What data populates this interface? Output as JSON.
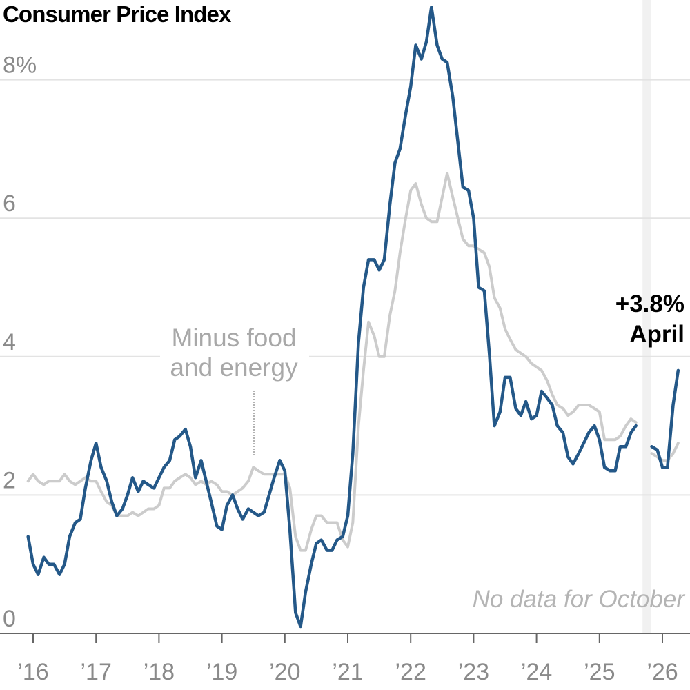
{
  "chart_data": {
    "type": "line",
    "title": "Consumer Price Index",
    "y_ticks": [
      "8%",
      "6",
      "4",
      "2",
      "0"
    ],
    "y_tick_values": [
      8,
      6,
      4,
      2,
      0
    ],
    "x_ticks": [
      "’16",
      "’17",
      "’18",
      "’19",
      "’20",
      "’21",
      "’22",
      "’23",
      "’24",
      "’25",
      "’26"
    ],
    "x_tick_values": [
      2016,
      2017,
      2018,
      2019,
      2020,
      2021,
      2022,
      2023,
      2024,
      2025,
      2026
    ],
    "xlim": [
      2015.86,
      2026.45
    ],
    "ylim": [
      0,
      8.8
    ],
    "grid": true,
    "gap_note": "No data for October",
    "gap_x": 2025.75,
    "callout": {
      "value": "+3.8%",
      "label": "April"
    },
    "series": [
      {
        "key": "headline",
        "color": "#245888",
        "segments": [
          [
            [
              2015.92,
              1.4
            ],
            [
              2016.0,
              1.0
            ],
            [
              2016.08,
              0.85
            ],
            [
              2016.17,
              1.1
            ],
            [
              2016.25,
              1.0
            ],
            [
              2016.33,
              1.0
            ],
            [
              2016.42,
              0.85
            ],
            [
              2016.5,
              1.0
            ],
            [
              2016.58,
              1.4
            ],
            [
              2016.67,
              1.6
            ],
            [
              2016.75,
              1.65
            ],
            [
              2016.83,
              2.1
            ],
            [
              2016.92,
              2.5
            ],
            [
              2017.0,
              2.75
            ],
            [
              2017.08,
              2.4
            ],
            [
              2017.17,
              2.2
            ],
            [
              2017.25,
              1.9
            ],
            [
              2017.33,
              1.7
            ],
            [
              2017.42,
              1.8
            ],
            [
              2017.5,
              2.0
            ],
            [
              2017.58,
              2.25
            ],
            [
              2017.67,
              2.05
            ],
            [
              2017.75,
              2.2
            ],
            [
              2017.83,
              2.15
            ],
            [
              2017.92,
              2.1
            ],
            [
              2018.0,
              2.25
            ],
            [
              2018.08,
              2.4
            ],
            [
              2018.17,
              2.5
            ],
            [
              2018.25,
              2.8
            ],
            [
              2018.33,
              2.85
            ],
            [
              2018.42,
              2.95
            ],
            [
              2018.5,
              2.7
            ],
            [
              2018.58,
              2.25
            ],
            [
              2018.67,
              2.5
            ],
            [
              2018.75,
              2.2
            ],
            [
              2018.83,
              1.9
            ],
            [
              2018.92,
              1.55
            ],
            [
              2019.0,
              1.5
            ],
            [
              2019.08,
              1.85
            ],
            [
              2019.17,
              2.0
            ],
            [
              2019.25,
              1.8
            ],
            [
              2019.33,
              1.65
            ],
            [
              2019.42,
              1.8
            ],
            [
              2019.5,
              1.75
            ],
            [
              2019.58,
              1.7
            ],
            [
              2019.67,
              1.75
            ],
            [
              2019.75,
              2.0
            ],
            [
              2019.83,
              2.25
            ],
            [
              2019.92,
              2.5
            ],
            [
              2020.0,
              2.35
            ],
            [
              2020.08,
              1.5
            ],
            [
              2020.17,
              0.3
            ],
            [
              2020.25,
              0.1
            ],
            [
              2020.33,
              0.6
            ],
            [
              2020.42,
              1.0
            ],
            [
              2020.5,
              1.3
            ],
            [
              2020.58,
              1.35
            ],
            [
              2020.67,
              1.2
            ],
            [
              2020.75,
              1.2
            ],
            [
              2020.83,
              1.35
            ],
            [
              2020.92,
              1.4
            ],
            [
              2021.0,
              1.7
            ],
            [
              2021.08,
              2.6
            ],
            [
              2021.17,
              4.2
            ],
            [
              2021.25,
              5.0
            ],
            [
              2021.33,
              5.4
            ],
            [
              2021.42,
              5.4
            ],
            [
              2021.5,
              5.25
            ],
            [
              2021.58,
              5.4
            ],
            [
              2021.67,
              6.2
            ],
            [
              2021.75,
              6.8
            ],
            [
              2021.83,
              7.0
            ],
            [
              2021.92,
              7.5
            ],
            [
              2022.0,
              7.9
            ],
            [
              2022.08,
              8.5
            ],
            [
              2022.17,
              8.3
            ],
            [
              2022.25,
              8.55
            ],
            [
              2022.33,
              9.05
            ],
            [
              2022.42,
              8.5
            ],
            [
              2022.5,
              8.3
            ],
            [
              2022.58,
              8.25
            ],
            [
              2022.67,
              7.75
            ],
            [
              2022.75,
              7.1
            ],
            [
              2022.83,
              6.45
            ],
            [
              2022.92,
              6.4
            ],
            [
              2023.0,
              6.0
            ],
            [
              2023.08,
              5.0
            ],
            [
              2023.17,
              4.95
            ],
            [
              2023.25,
              4.05
            ],
            [
              2023.33,
              3.0
            ],
            [
              2023.42,
              3.2
            ],
            [
              2023.5,
              3.7
            ],
            [
              2023.58,
              3.7
            ],
            [
              2023.67,
              3.25
            ],
            [
              2023.75,
              3.15
            ],
            [
              2023.83,
              3.35
            ],
            [
              2023.92,
              3.1
            ],
            [
              2024.0,
              3.15
            ],
            [
              2024.08,
              3.5
            ],
            [
              2024.17,
              3.4
            ],
            [
              2024.25,
              3.3
            ],
            [
              2024.33,
              3.0
            ],
            [
              2024.42,
              2.9
            ],
            [
              2024.5,
              2.55
            ],
            [
              2024.58,
              2.45
            ],
            [
              2024.67,
              2.6
            ],
            [
              2024.75,
              2.75
            ],
            [
              2024.83,
              2.9
            ],
            [
              2024.92,
              3.0
            ],
            [
              2025.0,
              2.8
            ],
            [
              2025.08,
              2.4
            ],
            [
              2025.17,
              2.35
            ],
            [
              2025.25,
              2.35
            ],
            [
              2025.33,
              2.7
            ],
            [
              2025.42,
              2.7
            ],
            [
              2025.5,
              2.9
            ],
            [
              2025.58,
              3.0
            ]
          ],
          [
            [
              2025.83,
              2.7
            ],
            [
              2025.92,
              2.65
            ],
            [
              2026.0,
              2.4
            ],
            [
              2026.08,
              2.4
            ],
            [
              2026.17,
              3.3
            ],
            [
              2026.25,
              3.8
            ]
          ]
        ]
      },
      {
        "key": "core",
        "color": "#cccccc",
        "name": "Minus food and energy",
        "segments": [
          [
            [
              2015.92,
              2.2
            ],
            [
              2016.0,
              2.3
            ],
            [
              2016.08,
              2.2
            ],
            [
              2016.17,
              2.15
            ],
            [
              2016.25,
              2.2
            ],
            [
              2016.33,
              2.2
            ],
            [
              2016.42,
              2.2
            ],
            [
              2016.5,
              2.3
            ],
            [
              2016.58,
              2.2
            ],
            [
              2016.67,
              2.15
            ],
            [
              2016.75,
              2.2
            ],
            [
              2016.83,
              2.25
            ],
            [
              2016.92,
              2.2
            ],
            [
              2017.0,
              2.2
            ],
            [
              2017.08,
              2.05
            ],
            [
              2017.17,
              1.9
            ],
            [
              2017.25,
              1.85
            ],
            [
              2017.33,
              1.7
            ],
            [
              2017.42,
              1.7
            ],
            [
              2017.5,
              1.7
            ],
            [
              2017.58,
              1.75
            ],
            [
              2017.67,
              1.7
            ],
            [
              2017.75,
              1.75
            ],
            [
              2017.83,
              1.8
            ],
            [
              2017.92,
              1.8
            ],
            [
              2018.0,
              1.85
            ],
            [
              2018.08,
              2.1
            ],
            [
              2018.17,
              2.1
            ],
            [
              2018.25,
              2.2
            ],
            [
              2018.33,
              2.25
            ],
            [
              2018.42,
              2.3
            ],
            [
              2018.5,
              2.25
            ],
            [
              2018.58,
              2.15
            ],
            [
              2018.67,
              2.2
            ],
            [
              2018.75,
              2.15
            ],
            [
              2018.83,
              2.2
            ],
            [
              2018.92,
              2.15
            ],
            [
              2019.0,
              2.05
            ],
            [
              2019.08,
              2.05
            ],
            [
              2019.17,
              2.0
            ],
            [
              2019.25,
              2.05
            ],
            [
              2019.33,
              2.1
            ],
            [
              2019.42,
              2.2
            ],
            [
              2019.5,
              2.4
            ],
            [
              2019.58,
              2.35
            ],
            [
              2019.67,
              2.3
            ],
            [
              2019.75,
              2.3
            ],
            [
              2019.83,
              2.3
            ],
            [
              2019.92,
              2.3
            ],
            [
              2020.0,
              2.3
            ],
            [
              2020.08,
              2.1
            ],
            [
              2020.17,
              1.4
            ],
            [
              2020.25,
              1.2
            ],
            [
              2020.33,
              1.2
            ],
            [
              2020.42,
              1.5
            ],
            [
              2020.5,
              1.7
            ],
            [
              2020.58,
              1.7
            ],
            [
              2020.67,
              1.6
            ],
            [
              2020.75,
              1.6
            ],
            [
              2020.83,
              1.6
            ],
            [
              2020.92,
              1.35
            ],
            [
              2021.0,
              1.25
            ],
            [
              2021.08,
              1.6
            ],
            [
              2021.17,
              3.0
            ],
            [
              2021.25,
              3.8
            ],
            [
              2021.33,
              4.5
            ],
            [
              2021.42,
              4.3
            ],
            [
              2021.5,
              4.0
            ],
            [
              2021.58,
              4.0
            ],
            [
              2021.67,
              4.6
            ],
            [
              2021.75,
              4.95
            ],
            [
              2021.83,
              5.5
            ],
            [
              2021.92,
              6.0
            ],
            [
              2022.0,
              6.4
            ],
            [
              2022.08,
              6.5
            ],
            [
              2022.17,
              6.2
            ],
            [
              2022.25,
              6.0
            ],
            [
              2022.33,
              5.95
            ],
            [
              2022.42,
              5.95
            ],
            [
              2022.5,
              6.3
            ],
            [
              2022.58,
              6.65
            ],
            [
              2022.67,
              6.3
            ],
            [
              2022.75,
              6.0
            ],
            [
              2022.83,
              5.7
            ],
            [
              2022.92,
              5.6
            ],
            [
              2023.0,
              5.6
            ],
            [
              2023.08,
              5.55
            ],
            [
              2023.17,
              5.5
            ],
            [
              2023.25,
              5.3
            ],
            [
              2023.33,
              4.85
            ],
            [
              2023.42,
              4.7
            ],
            [
              2023.5,
              4.4
            ],
            [
              2023.58,
              4.25
            ],
            [
              2023.67,
              4.1
            ],
            [
              2023.75,
              4.05
            ],
            [
              2023.83,
              4.0
            ],
            [
              2023.92,
              3.9
            ],
            [
              2024.0,
              3.85
            ],
            [
              2024.08,
              3.8
            ],
            [
              2024.17,
              3.65
            ],
            [
              2024.25,
              3.45
            ],
            [
              2024.33,
              3.3
            ],
            [
              2024.42,
              3.25
            ],
            [
              2024.5,
              3.15
            ],
            [
              2024.58,
              3.2
            ],
            [
              2024.67,
              3.3
            ],
            [
              2024.75,
              3.3
            ],
            [
              2024.83,
              3.3
            ],
            [
              2024.92,
              3.25
            ],
            [
              2025.0,
              3.2
            ],
            [
              2025.08,
              2.8
            ],
            [
              2025.17,
              2.8
            ],
            [
              2025.25,
              2.8
            ],
            [
              2025.33,
              2.85
            ],
            [
              2025.42,
              3.0
            ],
            [
              2025.5,
              3.1
            ],
            [
              2025.58,
              3.05
            ]
          ],
          [
            [
              2025.83,
              2.6
            ],
            [
              2025.92,
              2.55
            ],
            [
              2026.0,
              2.5
            ],
            [
              2026.08,
              2.5
            ],
            [
              2026.17,
              2.6
            ],
            [
              2026.25,
              2.75
            ]
          ]
        ]
      }
    ]
  }
}
